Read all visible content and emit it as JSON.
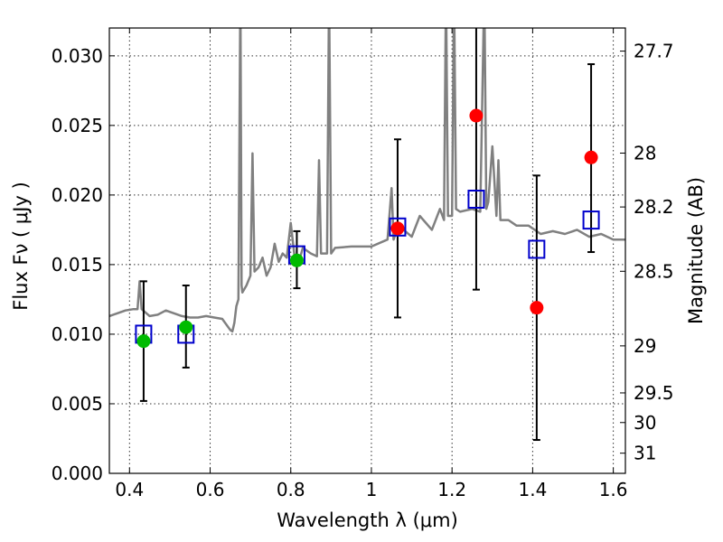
{
  "chart_data": {
    "type": "scatter",
    "xlabel": "Wavelength  λ (μm)",
    "ylabel": "Flux  Fν  ( μJy )",
    "ylabel_right": "Magnitude (AB)",
    "xlim": [
      0.35,
      1.63
    ],
    "ylim": [
      0.0,
      0.032
    ],
    "grid": true,
    "x_ticks": [
      0.4,
      0.6,
      0.8,
      1.0,
      1.2,
      1.4,
      1.6
    ],
    "x_tick_labels": [
      "0.4",
      "0.6",
      "0.8",
      "1",
      "1.2",
      "1.4",
      "1.6"
    ],
    "y_ticks": [
      0.0,
      0.005,
      0.01,
      0.015,
      0.02,
      0.025,
      0.03
    ],
    "y_tick_labels": [
      "0.000",
      "0.005",
      "0.010",
      "0.015",
      "0.020",
      "0.025",
      "0.030"
    ],
    "right_ticks": [
      {
        "label": "27.7",
        "flux": 0.03034
      },
      {
        "label": "28",
        "flux": 0.02301
      },
      {
        "label": "28.2",
        "flux": 0.01914
      },
      {
        "label": "28.5",
        "flux": 0.01452
      },
      {
        "label": "29",
        "flux": 0.00916
      },
      {
        "label": "29.5",
        "flux": 0.00578
      },
      {
        "label": "30",
        "flux": 0.00365
      },
      {
        "label": "31",
        "flux": 0.00145
      }
    ],
    "series": [
      {
        "kind": "spectrum",
        "color": "#808080",
        "x": [
          0.35,
          0.37,
          0.39,
          0.41,
          0.42,
          0.425,
          0.43,
          0.45,
          0.47,
          0.49,
          0.51,
          0.53,
          0.55,
          0.57,
          0.59,
          0.61,
          0.63,
          0.65,
          0.655,
          0.66,
          0.665,
          0.67,
          0.675,
          0.678,
          0.68,
          0.69,
          0.7,
          0.705,
          0.71,
          0.72,
          0.73,
          0.74,
          0.75,
          0.76,
          0.77,
          0.78,
          0.79,
          0.8,
          0.81,
          0.82,
          0.83,
          0.85,
          0.865,
          0.87,
          0.875,
          0.89,
          0.895,
          0.9,
          0.91,
          0.95,
          1.0,
          1.04,
          1.05,
          1.055,
          1.06,
          1.08,
          1.1,
          1.12,
          1.15,
          1.17,
          1.18,
          1.185,
          1.19,
          1.2,
          1.205,
          1.21,
          1.22,
          1.25,
          1.27,
          1.28,
          1.285,
          1.29,
          1.3,
          1.31,
          1.315,
          1.32,
          1.34,
          1.36,
          1.39,
          1.42,
          1.45,
          1.48,
          1.51,
          1.54,
          1.57,
          1.6,
          1.63
        ],
        "y": [
          0.0113,
          0.0115,
          0.0117,
          0.0118,
          0.0118,
          0.0138,
          0.0118,
          0.0113,
          0.0114,
          0.0117,
          0.0115,
          0.0113,
          0.0112,
          0.0112,
          0.0113,
          0.0112,
          0.0111,
          0.0103,
          0.0102,
          0.0108,
          0.012,
          0.0125,
          0.035,
          0.0135,
          0.013,
          0.0135,
          0.0142,
          0.023,
          0.0145,
          0.0148,
          0.0155,
          0.0142,
          0.0148,
          0.0165,
          0.0152,
          0.0158,
          0.0155,
          0.018,
          0.0154,
          0.0152,
          0.0162,
          0.0158,
          0.0156,
          0.0225,
          0.0158,
          0.0158,
          0.035,
          0.0158,
          0.0162,
          0.0163,
          0.0163,
          0.0168,
          0.0205,
          0.0168,
          0.0172,
          0.0175,
          0.017,
          0.0185,
          0.0175,
          0.019,
          0.0182,
          0.035,
          0.0185,
          0.0185,
          0.035,
          0.019,
          0.0188,
          0.019,
          0.0188,
          0.035,
          0.019,
          0.0195,
          0.0235,
          0.0185,
          0.0225,
          0.0182,
          0.0182,
          0.0178,
          0.0178,
          0.0172,
          0.0174,
          0.0172,
          0.0175,
          0.017,
          0.0172,
          0.0168,
          0.0168
        ]
      },
      {
        "kind": "model-photometry",
        "marker": "open-square",
        "color": "#0000cc",
        "x": [
          0.435,
          0.54,
          0.815,
          1.065,
          1.26,
          1.41,
          1.545
        ],
        "y": [
          0.01,
          0.01,
          0.0157,
          0.0177,
          0.0197,
          0.0161,
          0.0182
        ]
      },
      {
        "kind": "observed-photometry",
        "marker": "filled-circle",
        "x": [
          0.435,
          0.54,
          0.815,
          1.065,
          1.26,
          1.41,
          1.545
        ],
        "y": [
          0.0095,
          0.0105,
          0.0153,
          0.0176,
          0.0257,
          0.0119,
          0.0227
        ],
        "yerr_low": [
          0.0052,
          0.0076,
          0.0133,
          0.0112,
          0.0132,
          0.0024,
          0.0159
        ],
        "yerr_high": [
          0.0138,
          0.0135,
          0.0174,
          0.024,
          0.0325,
          0.0214,
          0.0294
        ],
        "colors": [
          "#00bb00",
          "#00bb00",
          "#00bb00",
          "#ff0000",
          "#ff0000",
          "#ff0000",
          "#ff0000"
        ]
      }
    ]
  }
}
